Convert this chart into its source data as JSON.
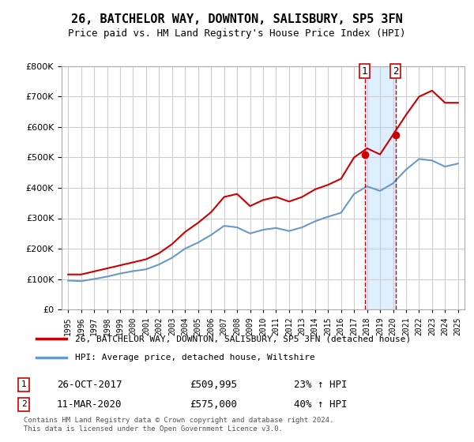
{
  "title": "26, BATCHELOR WAY, DOWNTON, SALISBURY, SP5 3FN",
  "subtitle": "Price paid vs. HM Land Registry's House Price Index (HPI)",
  "legend_label_red": "26, BATCHELOR WAY, DOWNTON, SALISBURY, SP5 3FN (detached house)",
  "legend_label_blue": "HPI: Average price, detached house, Wiltshire",
  "sale1_label": "1",
  "sale1_date": "26-OCT-2017",
  "sale1_price": "£509,995",
  "sale1_hpi": "23% ↑ HPI",
  "sale2_label": "2",
  "sale2_date": "11-MAR-2020",
  "sale2_price": "£575,000",
  "sale2_hpi": "40% ↑ HPI",
  "footnote": "Contains HM Land Registry data © Crown copyright and database right 2024.\nThis data is licensed under the Open Government Licence v3.0.",
  "ylim": [
    0,
    800000
  ],
  "yticks": [
    0,
    100000,
    200000,
    300000,
    400000,
    500000,
    600000,
    700000,
    800000
  ],
  "sale1_x": 2017.82,
  "sale2_x": 2020.19,
  "red_color": "#cc0000",
  "blue_color": "#6699cc",
  "background_color": "#ffffff",
  "shaded_color": "#ddeeff",
  "years_x": [
    1995,
    1996,
    1997,
    1998,
    1999,
    2000,
    2001,
    2002,
    2003,
    2004,
    2005,
    2006,
    2007,
    2008,
    2009,
    2010,
    2011,
    2012,
    2013,
    2014,
    2015,
    2016,
    2017,
    2018,
    2019,
    2020,
    2021,
    2022,
    2023,
    2024,
    2025
  ],
  "red_y": [
    115000,
    115000,
    125000,
    135000,
    145000,
    155000,
    165000,
    185000,
    215000,
    255000,
    285000,
    320000,
    370000,
    380000,
    340000,
    360000,
    370000,
    355000,
    370000,
    395000,
    410000,
    430000,
    500000,
    530000,
    510000,
    575000,
    640000,
    700000,
    720000,
    680000,
    680000
  ],
  "blue_y": [
    95000,
    93000,
    100000,
    108000,
    118000,
    126000,
    132000,
    148000,
    170000,
    200000,
    220000,
    245000,
    275000,
    270000,
    250000,
    262000,
    268000,
    258000,
    270000,
    290000,
    305000,
    318000,
    380000,
    405000,
    390000,
    415000,
    460000,
    495000,
    490000,
    470000,
    480000
  ]
}
